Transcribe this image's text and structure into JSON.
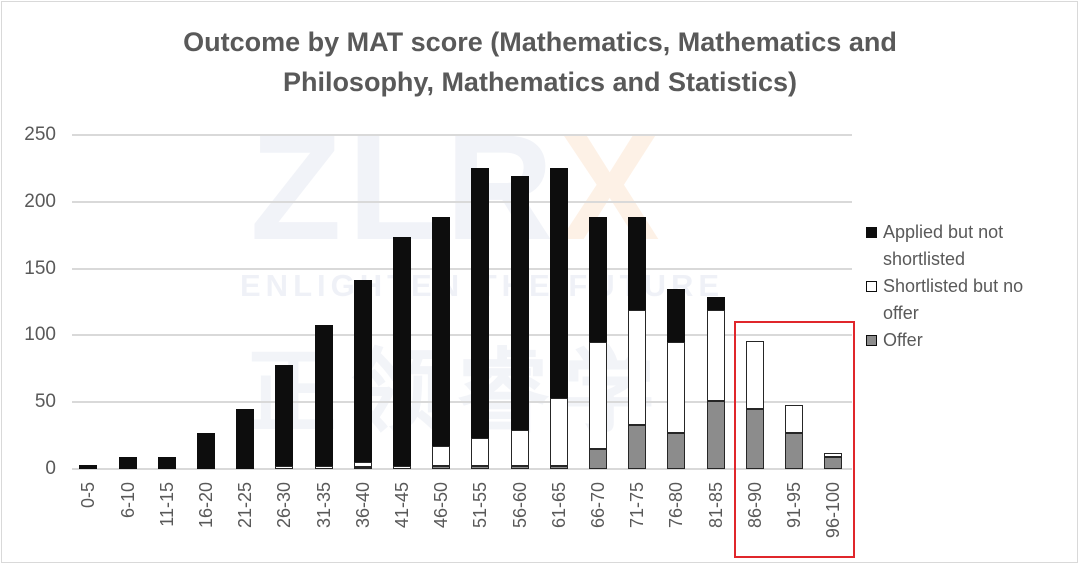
{
  "chart_data": {
    "type": "bar",
    "stacked": true,
    "title": "Outcome by MAT score (Mathematics, Mathematics and Philosophy, Mathematics and Statistics)",
    "title_lines": [
      "Outcome by MAT score (Mathematics, Mathematics and",
      "Philosophy, Mathematics and Statistics)"
    ],
    "xlabel": "",
    "ylabel": "",
    "ylim": [
      0,
      250
    ],
    "yticks": [
      0,
      50,
      100,
      150,
      200,
      250
    ],
    "grid": true,
    "legend_position": "right",
    "categories": [
      "0-5",
      "6-10",
      "11-15",
      "16-20",
      "21-25",
      "26-30",
      "31-35",
      "36-40",
      "41-45",
      "46-50",
      "51-55",
      "56-60",
      "61-65",
      "66-70",
      "71-75",
      "76-80",
      "81-85",
      "86-90",
      "91-95",
      "96-100"
    ],
    "series": [
      {
        "name": "Offer",
        "color": "#8c8c8c",
        "values": [
          0,
          0,
          0,
          0,
          0,
          0,
          0,
          1,
          0,
          2,
          2,
          2,
          2,
          15,
          33,
          27,
          51,
          45,
          27,
          9
        ]
      },
      {
        "name": "Shortlisted but no offer",
        "color": "#ffffff",
        "values": [
          0,
          0,
          0,
          0,
          0,
          2,
          2,
          4,
          2,
          15,
          21,
          27,
          51,
          80,
          86,
          68,
          68,
          51,
          21,
          3
        ]
      },
      {
        "name": "Applied but not shortlisted",
        "color": "#0d0d0d",
        "values": [
          3,
          9,
          9,
          27,
          45,
          76,
          106,
          136,
          172,
          172,
          202,
          190,
          172,
          94,
          70,
          40,
          10,
          0,
          0,
          0
        ]
      }
    ],
    "totals": [
      3,
      9,
      9,
      27,
      45,
      78,
      108,
      141,
      174,
      189,
      225,
      219,
      225,
      189,
      189,
      135,
      129,
      96,
      48,
      12
    ],
    "annotations": [
      {
        "type": "highlight-box",
        "color": "#e0262b",
        "covers": [
          "86-90",
          "91-95",
          "96-100"
        ]
      }
    ]
  },
  "legend": {
    "items": [
      {
        "label": "Applied but not shortlisted",
        "line1": "Applied but not",
        "line2": "shortlisted",
        "swatch": "#0d0d0d"
      },
      {
        "label": "Shortlisted but no offer",
        "line1": "Shortlisted but no",
        "line2": "offer",
        "swatch": "#ffffff"
      },
      {
        "label": "Offer",
        "line1": "Offer",
        "line2": "",
        "swatch": "#8c8c8c"
      }
    ]
  },
  "watermark": {
    "logo": "ZLR",
    "logo_accent": "X",
    "tagline": "ENLIGHTEN THE FUTURE",
    "chinese": "正领睿学"
  }
}
